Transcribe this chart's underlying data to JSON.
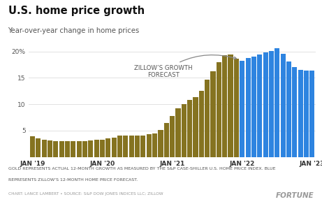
{
  "title": "U.S. home price growth",
  "subtitle": "Year-over-year change in home prices",
  "gold_color": "#857320",
  "blue_color": "#2e84e0",
  "background_color": "#ffffff",
  "chart_bg_color": "#f7f4ee",
  "grid_color": "#dddddd",
  "ytick_labels": [
    "5",
    "10",
    "15",
    "20%"
  ],
  "ytick_vals": [
    5,
    10,
    15,
    20
  ],
  "xtick_labels": [
    "JAN '19",
    "JAN '20",
    "JAN '21",
    "JAN '22",
    "JAN '23"
  ],
  "xtick_positions": [
    0,
    12,
    24,
    36,
    48
  ],
  "footer_line1": "GOLD REPRESENTS ACTUAL 12-MONTH GROWTH AS MEASURED BY THE S&P CASE-SHILLER U.S. HOME PRICE INDEX. BLUE",
  "footer_line2": "REPRESENTS ZILLOW’S 12-MONTH HOME PRICE FORECAST.",
  "footer_credit": "CHART: LANCE LAMBERT • SOURCE: S&P DOW JONES INDICES LLC; ZILLOW",
  "fortune_text": "FORTUNE",
  "annotation_text": "ZILLOW’S GROWTH\nFORECAST",
  "values": [
    3.9,
    3.5,
    3.3,
    3.1,
    3.0,
    3.0,
    3.0,
    3.0,
    3.0,
    3.0,
    3.1,
    3.2,
    3.3,
    3.5,
    3.7,
    4.0,
    4.1,
    4.1,
    4.0,
    4.0,
    4.3,
    4.4,
    5.1,
    6.4,
    7.8,
    9.2,
    10.0,
    10.8,
    11.3,
    12.5,
    14.6,
    16.2,
    18.0,
    19.3,
    19.4,
    18.7,
    18.3,
    18.8,
    19.0,
    19.4,
    19.8,
    20.1,
    20.6,
    19.6,
    18.1,
    17.1,
    16.5,
    16.4,
    16.4
  ],
  "colors": [
    "gold",
    "gold",
    "gold",
    "gold",
    "gold",
    "gold",
    "gold",
    "gold",
    "gold",
    "gold",
    "gold",
    "gold",
    "gold",
    "gold",
    "gold",
    "gold",
    "gold",
    "gold",
    "gold",
    "gold",
    "gold",
    "gold",
    "gold",
    "gold",
    "gold",
    "gold",
    "gold",
    "gold",
    "gold",
    "gold",
    "gold",
    "gold",
    "gold",
    "gold",
    "gold",
    "gold",
    "blue",
    "blue",
    "blue",
    "blue",
    "blue",
    "blue",
    "blue",
    "blue",
    "blue",
    "blue",
    "blue",
    "blue",
    "blue"
  ],
  "ylim": [
    0,
    21.5
  ],
  "n_bars": 49
}
